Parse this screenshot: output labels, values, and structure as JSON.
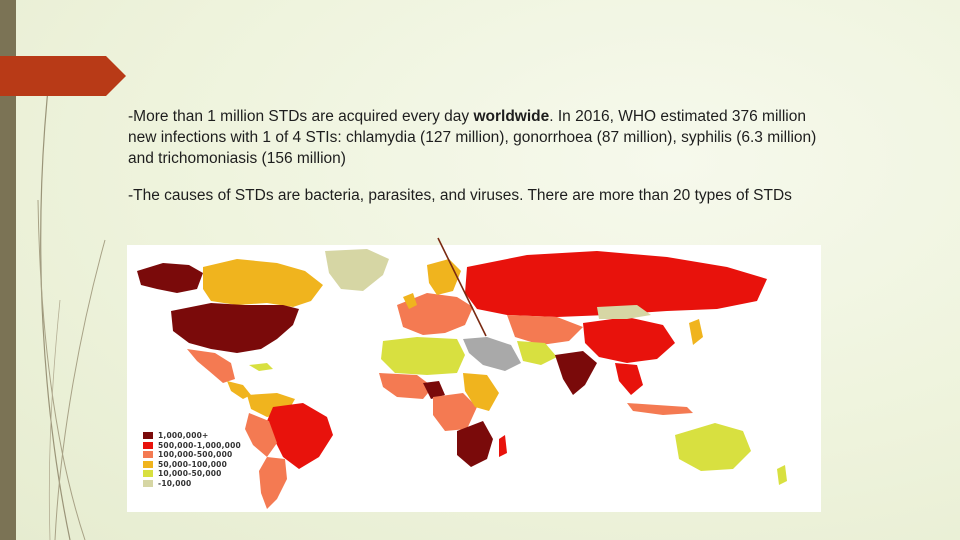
{
  "slide": {
    "paragraph_1": {
      "prefix": "-More than 1 million STDs are acquired every day ",
      "bold": "worldwide",
      "suffix": ". In 2016, WHO estimated 376 million new infections with 1 of 4 STIs: chlamydia (127 million), gonorrhoea (87 million), syphilis (6.3 million) and trichomoniasis (156 million)"
    },
    "paragraph_2": "-The causes of STDs are bacteria, parasites, and viruses. There are more than 20 types of STDs"
  },
  "map": {
    "ocean_color": "#ffffff",
    "legend": [
      {
        "label": "1,000,000+",
        "color": "#7a0a0a"
      },
      {
        "label": "500,000-1,000,000",
        "color": "#e8120c"
      },
      {
        "label": "100,000-500,000",
        "color": "#f47a52"
      },
      {
        "label": "50,000-100,000",
        "color": "#f0b41e"
      },
      {
        "label": "10,000-50,000",
        "color": "#d8e040"
      },
      {
        "label": "-10,000",
        "color": "#d6d6a4"
      }
    ],
    "no_data_color": "#a9a9a9"
  }
}
